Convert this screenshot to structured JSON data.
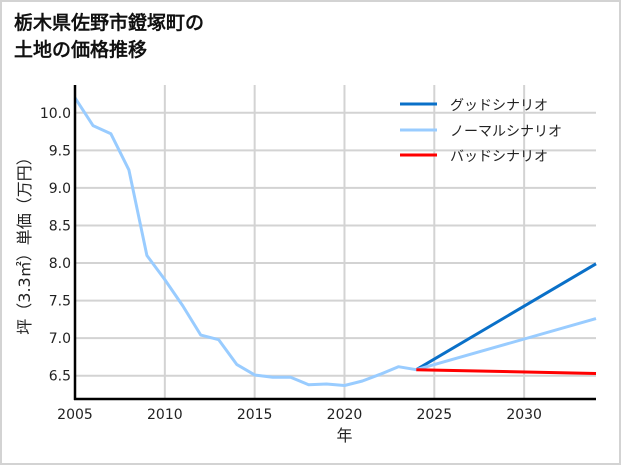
{
  "title": "栃木県佐野市鐙塚町の\n土地の価格推移",
  "chart_data": {
    "type": "line",
    "title": "栃木県佐野市鐙塚町の土地の価格推移",
    "xlabel": "年",
    "ylabel": "坪（3.3㎡）単価（万円）",
    "xlim": [
      2005,
      2034
    ],
    "ylim": [
      6.19,
      10.37
    ],
    "xticks": [
      2005,
      2010,
      2015,
      2020,
      2025,
      2030
    ],
    "yticks": [
      6.5,
      7.0,
      7.5,
      8.0,
      8.5,
      9.0,
      9.5,
      10.0
    ],
    "ytick_labels": [
      "6.5",
      "7.0",
      "7.5",
      "8.0",
      "8.5",
      "9.0",
      "9.5",
      "10.0"
    ],
    "grid": true,
    "legend_position": "upper right",
    "series": [
      {
        "name": "グッドシナリオ",
        "color": "#0a70c8",
        "x": [
          2024,
          2034
        ],
        "values": [
          6.58,
          7.99
        ]
      },
      {
        "name": "ノーマルシナリオ",
        "color": "#99ccff",
        "x": [
          2005,
          2006,
          2007,
          2008,
          2009,
          2010,
          2011,
          2012,
          2013,
          2014,
          2015,
          2016,
          2017,
          2018,
          2019,
          2020,
          2021,
          2022,
          2023,
          2024,
          2034
        ],
        "values": [
          10.2,
          9.83,
          9.72,
          9.24,
          8.1,
          7.78,
          7.43,
          7.04,
          6.98,
          6.65,
          6.51,
          6.48,
          6.48,
          6.38,
          6.39,
          6.37,
          6.43,
          6.52,
          6.62,
          6.58,
          7.26
        ]
      },
      {
        "name": "バッドシナリオ",
        "color": "#ff0000",
        "x": [
          2024,
          2034
        ],
        "values": [
          6.58,
          6.53
        ]
      }
    ]
  }
}
